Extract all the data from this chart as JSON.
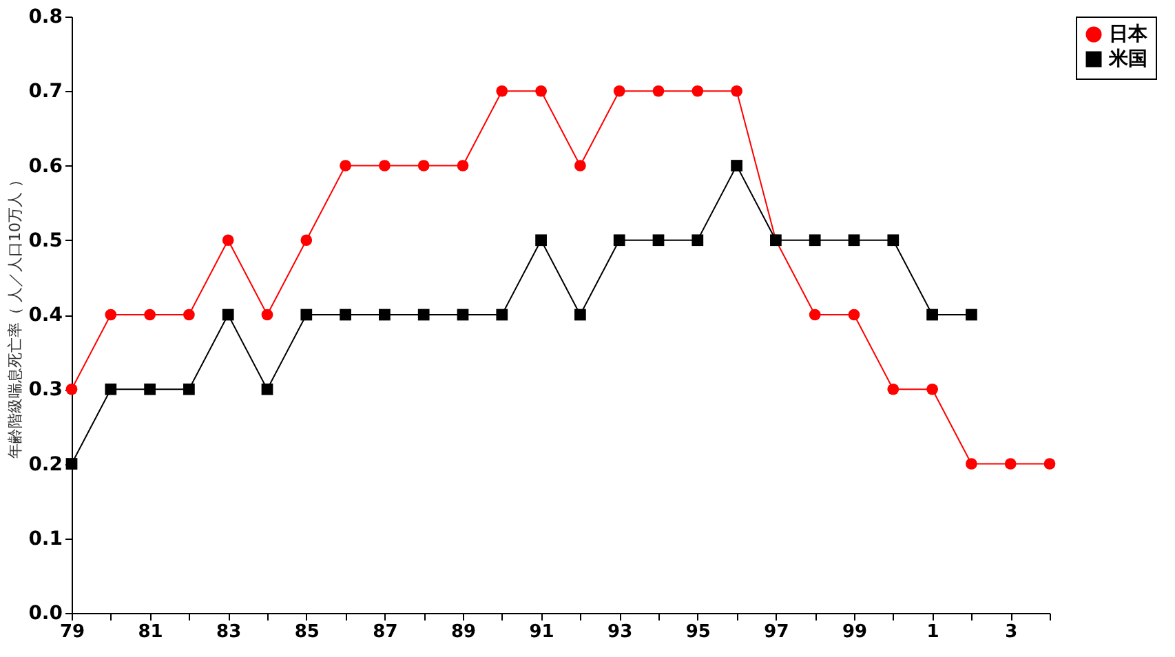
{
  "chart_data": {
    "type": "line",
    "ylabel": "年齢階級喘息死亡率（ 人／人口10万人 ）",
    "categories": [
      "79",
      null,
      "81",
      null,
      "83",
      null,
      "85",
      null,
      "87",
      null,
      "89",
      null,
      "91",
      null,
      "93",
      null,
      "95",
      null,
      "97",
      null,
      "99",
      null,
      "1",
      null,
      "3",
      null
    ],
    "series": [
      {
        "name": "日本",
        "color": "#ff0000",
        "marker": "circle",
        "values": [
          0.3,
          0.4,
          0.4,
          0.4,
          0.5,
          0.4,
          0.5,
          0.6,
          0.6,
          0.6,
          0.6,
          0.7,
          0.7,
          0.6,
          0.7,
          0.7,
          0.7,
          0.7,
          0.5,
          0.4,
          0.4,
          0.3,
          0.3,
          0.2,
          0.2,
          0.2
        ]
      },
      {
        "name": "米国",
        "color": "#000000",
        "marker": "square",
        "values": [
          0.2,
          0.3,
          0.3,
          0.3,
          0.4,
          0.3,
          0.4,
          0.4,
          0.4,
          0.4,
          0.4,
          0.4,
          0.5,
          0.4,
          0.5,
          0.5,
          0.5,
          0.6,
          0.5,
          0.5,
          0.5,
          0.5,
          0.4,
          0.4,
          null,
          null
        ]
      }
    ],
    "ylim": [
      0,
      0.8
    ],
    "yticks": [
      {
        "value": 0,
        "label": "0.0"
      },
      0.1,
      0.2,
      0.3,
      0.4,
      0.5,
      0.6,
      0.7,
      0.8
    ],
    "grid": false,
    "legend": "right",
    "line_style": "solid"
  }
}
